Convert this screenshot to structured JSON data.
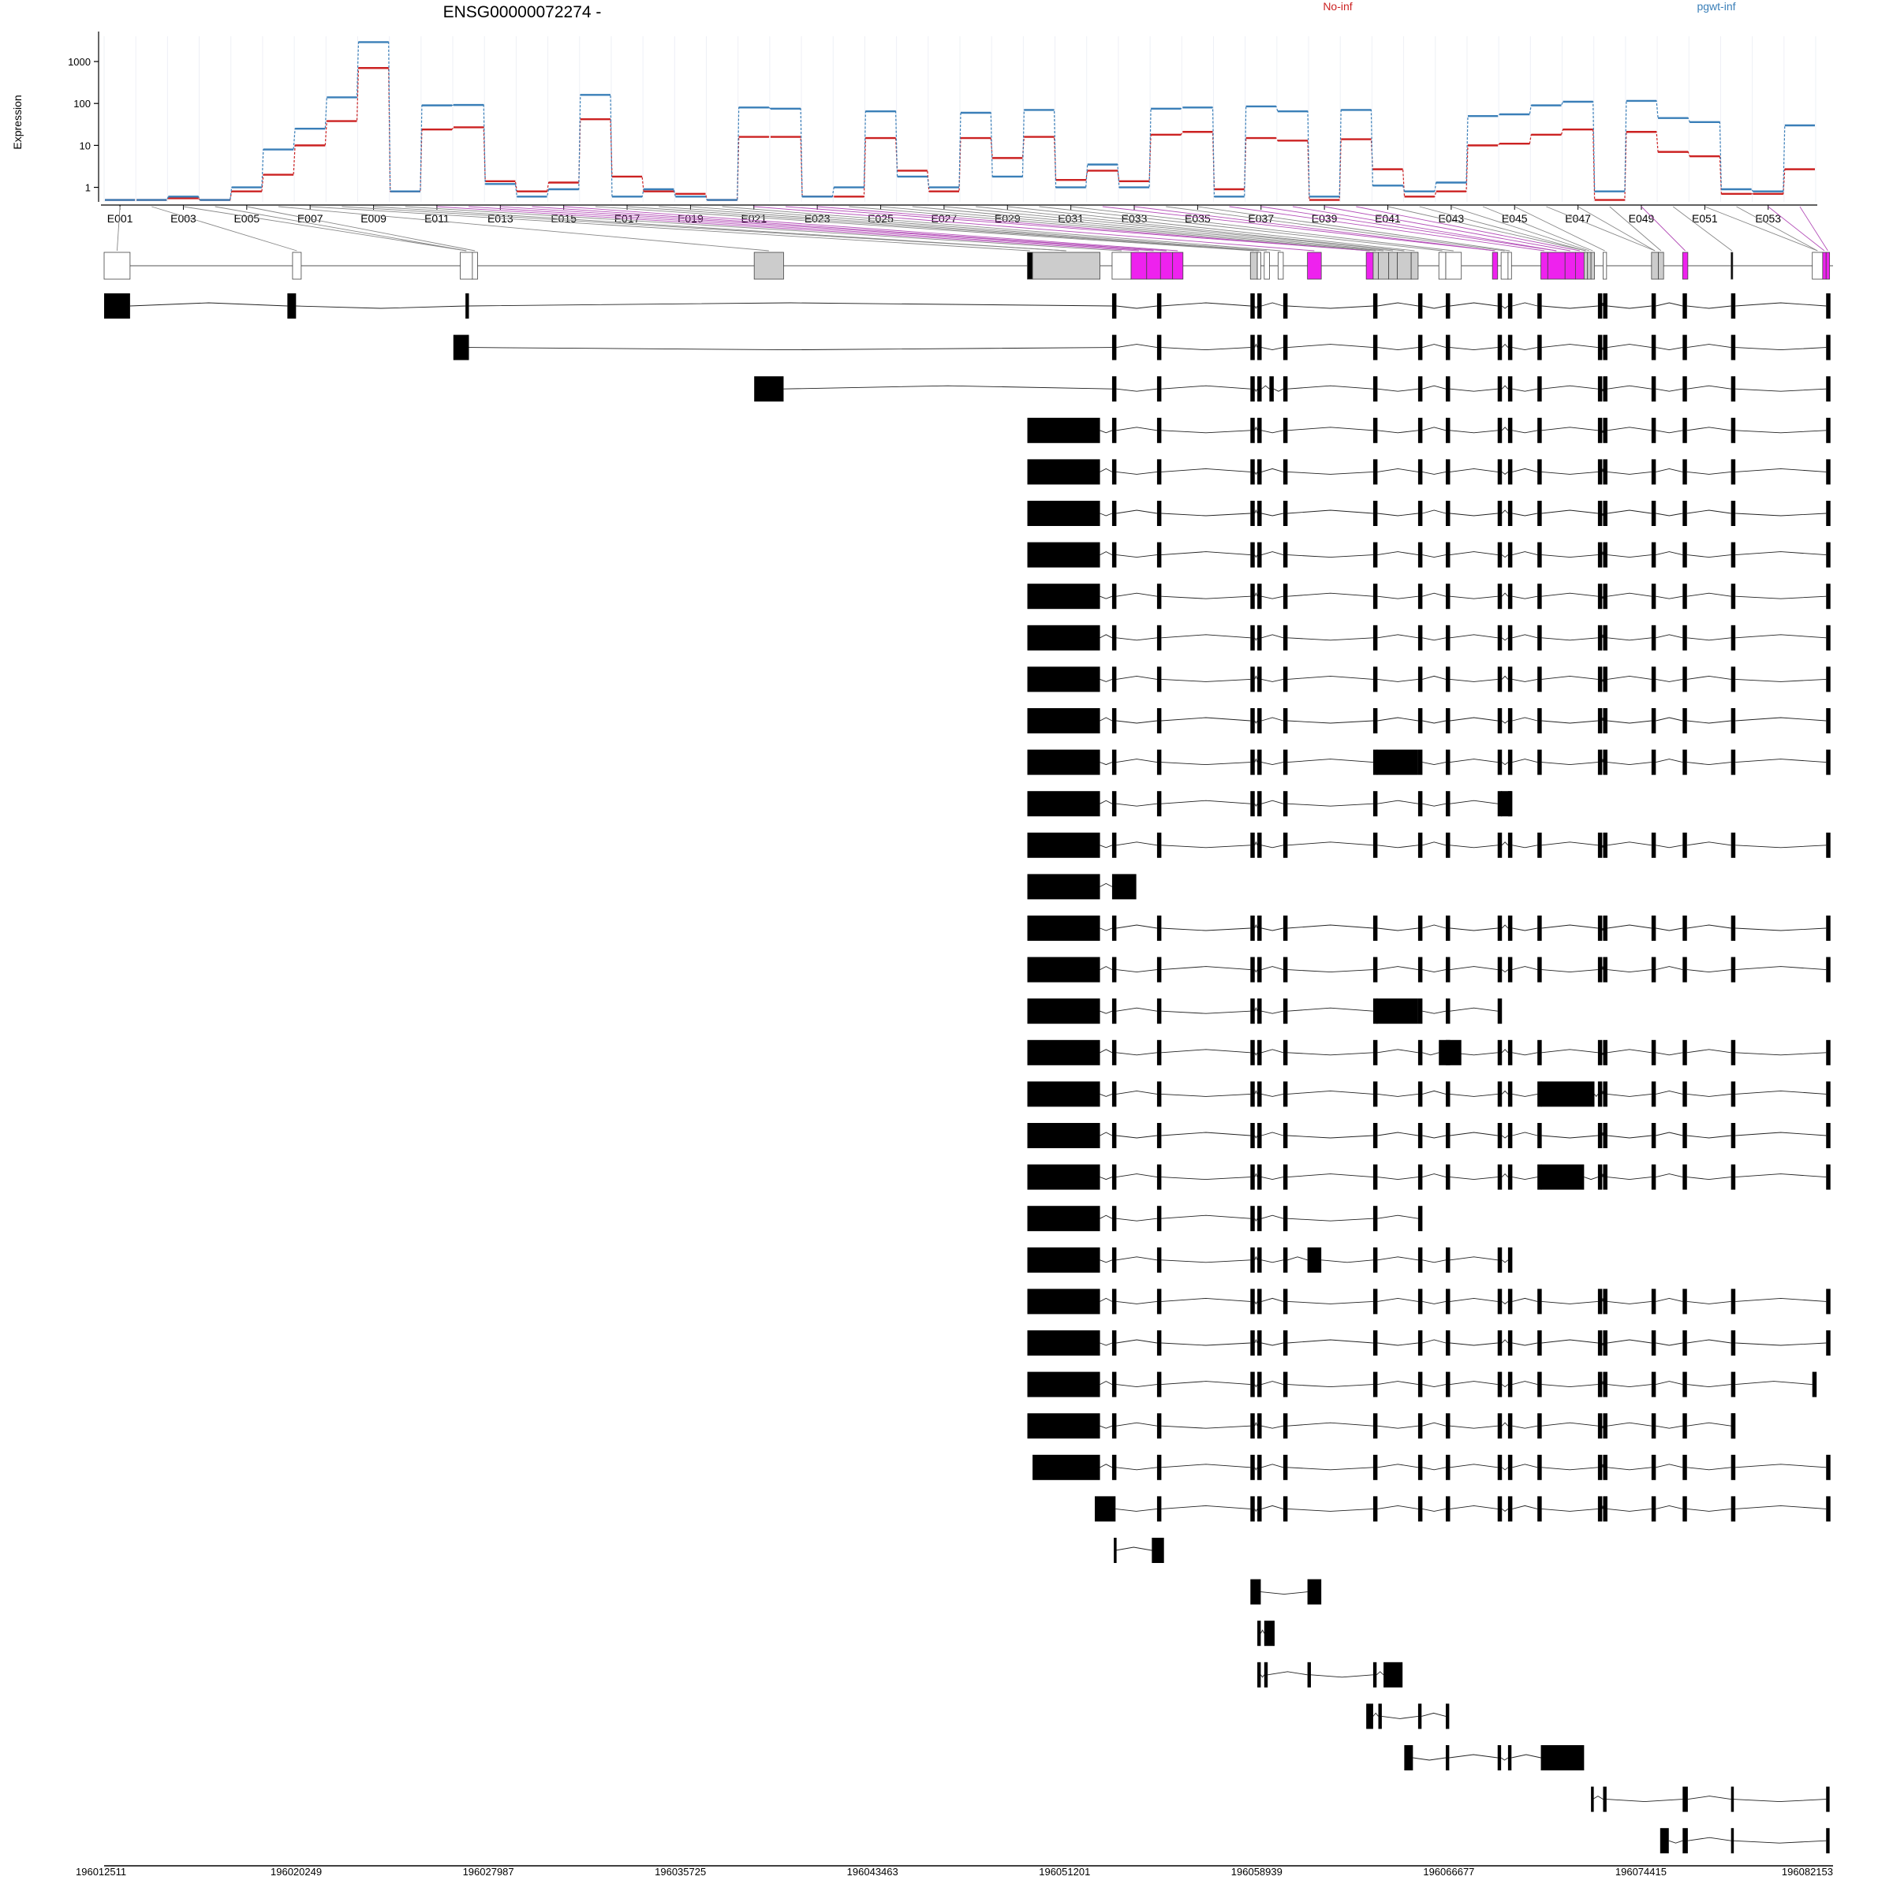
{
  "chart_data": {
    "type": "line",
    "title": "ENSG00000072274 -",
    "ylabel": "Expression",
    "yscale": "log",
    "yticks": [
      "1",
      "10",
      "100",
      "1000"
    ],
    "ylim": [
      0.45,
      4000
    ],
    "legend": {
      "placement": "top-right",
      "entries": [
        "No-inf",
        "pgwt-inf"
      ]
    },
    "colors": {
      "No-inf": "#cc2222",
      "pgwt-inf": "#3a7fb8",
      "highlight": "#ee22ee",
      "neutral": "#cccccc",
      "feature": "#000000"
    },
    "x_labels": [
      "E001",
      "E003",
      "E005",
      "E007",
      "E009",
      "E011",
      "E013",
      "E015",
      "E017",
      "E019",
      "E021",
      "E023",
      "E025",
      "E027",
      "E029",
      "E031",
      "E033",
      "E035",
      "E037",
      "E039",
      "E041",
      "E043",
      "E045",
      "E047",
      "E049",
      "E051",
      "E053"
    ],
    "series": [
      {
        "name": "No-inf",
        "values": [
          0.5,
          0.5,
          0.55,
          0.5,
          0.8,
          2,
          10,
          38,
          700,
          0.8,
          24,
          27,
          1.4,
          0.8,
          1.3,
          42,
          1.8,
          0.8,
          0.7,
          0.5,
          16,
          16,
          0.6,
          0.6,
          15,
          2.5,
          0.8,
          15,
          5,
          16,
          1.5,
          2.5,
          1.4,
          18,
          21,
          0.9,
          15,
          13,
          0.5,
          14,
          2.7,
          0.6,
          0.8,
          10,
          11,
          18,
          24,
          0.5,
          21,
          7,
          5.5,
          0.7,
          0.7,
          2.7
        ]
      },
      {
        "name": "pgwt-inf",
        "values": [
          0.5,
          0.5,
          0.6,
          0.5,
          1,
          8,
          25,
          140,
          2900,
          0.8,
          90,
          92,
          1.2,
          0.6,
          0.9,
          160,
          0.6,
          0.9,
          0.6,
          0.5,
          80,
          75,
          0.6,
          1,
          65,
          1.8,
          1,
          60,
          1.8,
          70,
          1,
          3.5,
          1,
          75,
          80,
          0.6,
          85,
          65,
          0.6,
          70,
          1.1,
          0.8,
          1.3,
          50,
          55,
          90,
          110,
          0.8,
          115,
          45,
          36,
          0.9,
          0.8,
          30
        ]
      }
    ],
    "genomic_axis": {
      "ticks": [
        "196012511",
        "196020249",
        "196027987",
        "196035725",
        "196043463",
        "196051201",
        "196058939",
        "196066677",
        "196074415",
        "196082153"
      ]
    }
  }
}
